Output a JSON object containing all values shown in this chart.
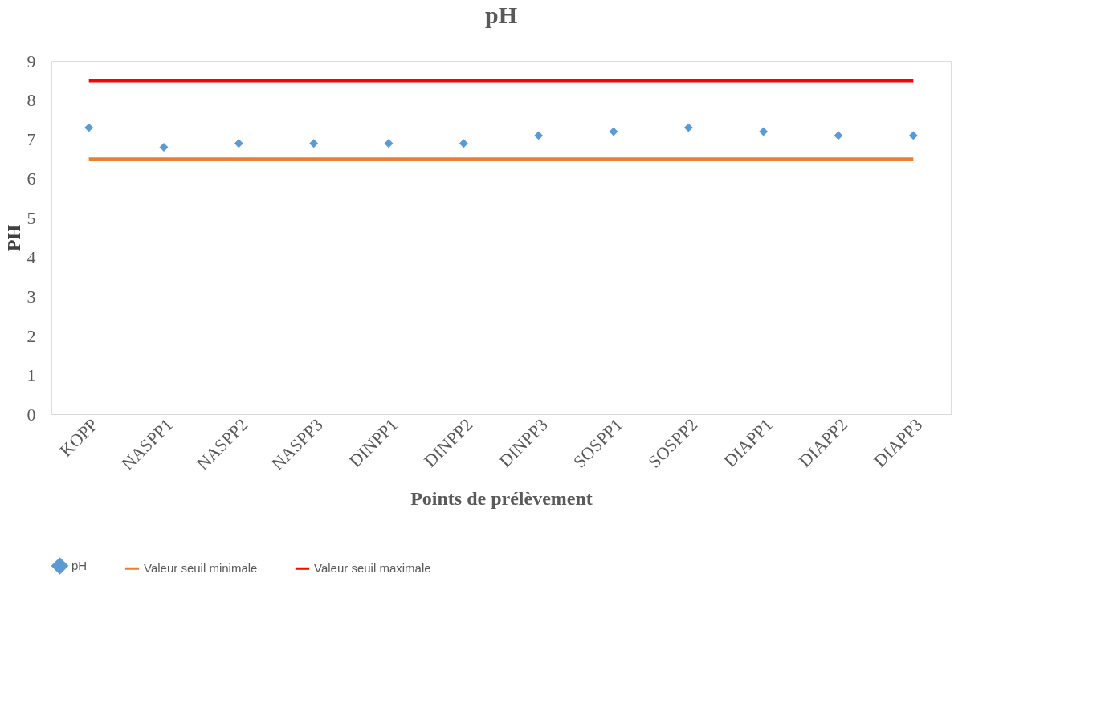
{
  "chart_data": {
    "type": "scatter",
    "title": "pH",
    "xlabel": "Points de prélèvement",
    "ylabel": "PH",
    "categories": [
      "KOPP",
      "NASPP1",
      "NASPP2",
      "NASPP3",
      "DINPP1",
      "DINPP2",
      "DINPP3",
      "SOSPP1",
      "SOSPP2",
      "DIAPP1",
      "DIAPP2",
      "DIAPP3"
    ],
    "series": [
      {
        "name": "pH",
        "marker": "diamond",
        "color": "#5b9bd5",
        "values": [
          7.3,
          6.8,
          6.9,
          6.9,
          6.9,
          6.9,
          7.1,
          7.2,
          7.3,
          7.2,
          7.1,
          7.1
        ]
      },
      {
        "name": "Valeur seuil minimale",
        "type": "line",
        "color": "#ed7d31",
        "values": [
          6.5,
          6.5,
          6.5,
          6.5,
          6.5,
          6.5,
          6.5,
          6.5,
          6.5,
          6.5,
          6.5,
          6.5
        ]
      },
      {
        "name": "Valeur seuil maximale",
        "type": "line",
        "color": "#ff0000",
        "values": [
          8.5,
          8.5,
          8.5,
          8.5,
          8.5,
          8.5,
          8.5,
          8.5,
          8.5,
          8.5,
          8.5,
          8.5
        ]
      }
    ],
    "ylim": [
      0,
      9
    ],
    "yticks": [
      0,
      1,
      2,
      3,
      4,
      5,
      6,
      7,
      8,
      9
    ],
    "grid": false,
    "legend": "bottom"
  }
}
